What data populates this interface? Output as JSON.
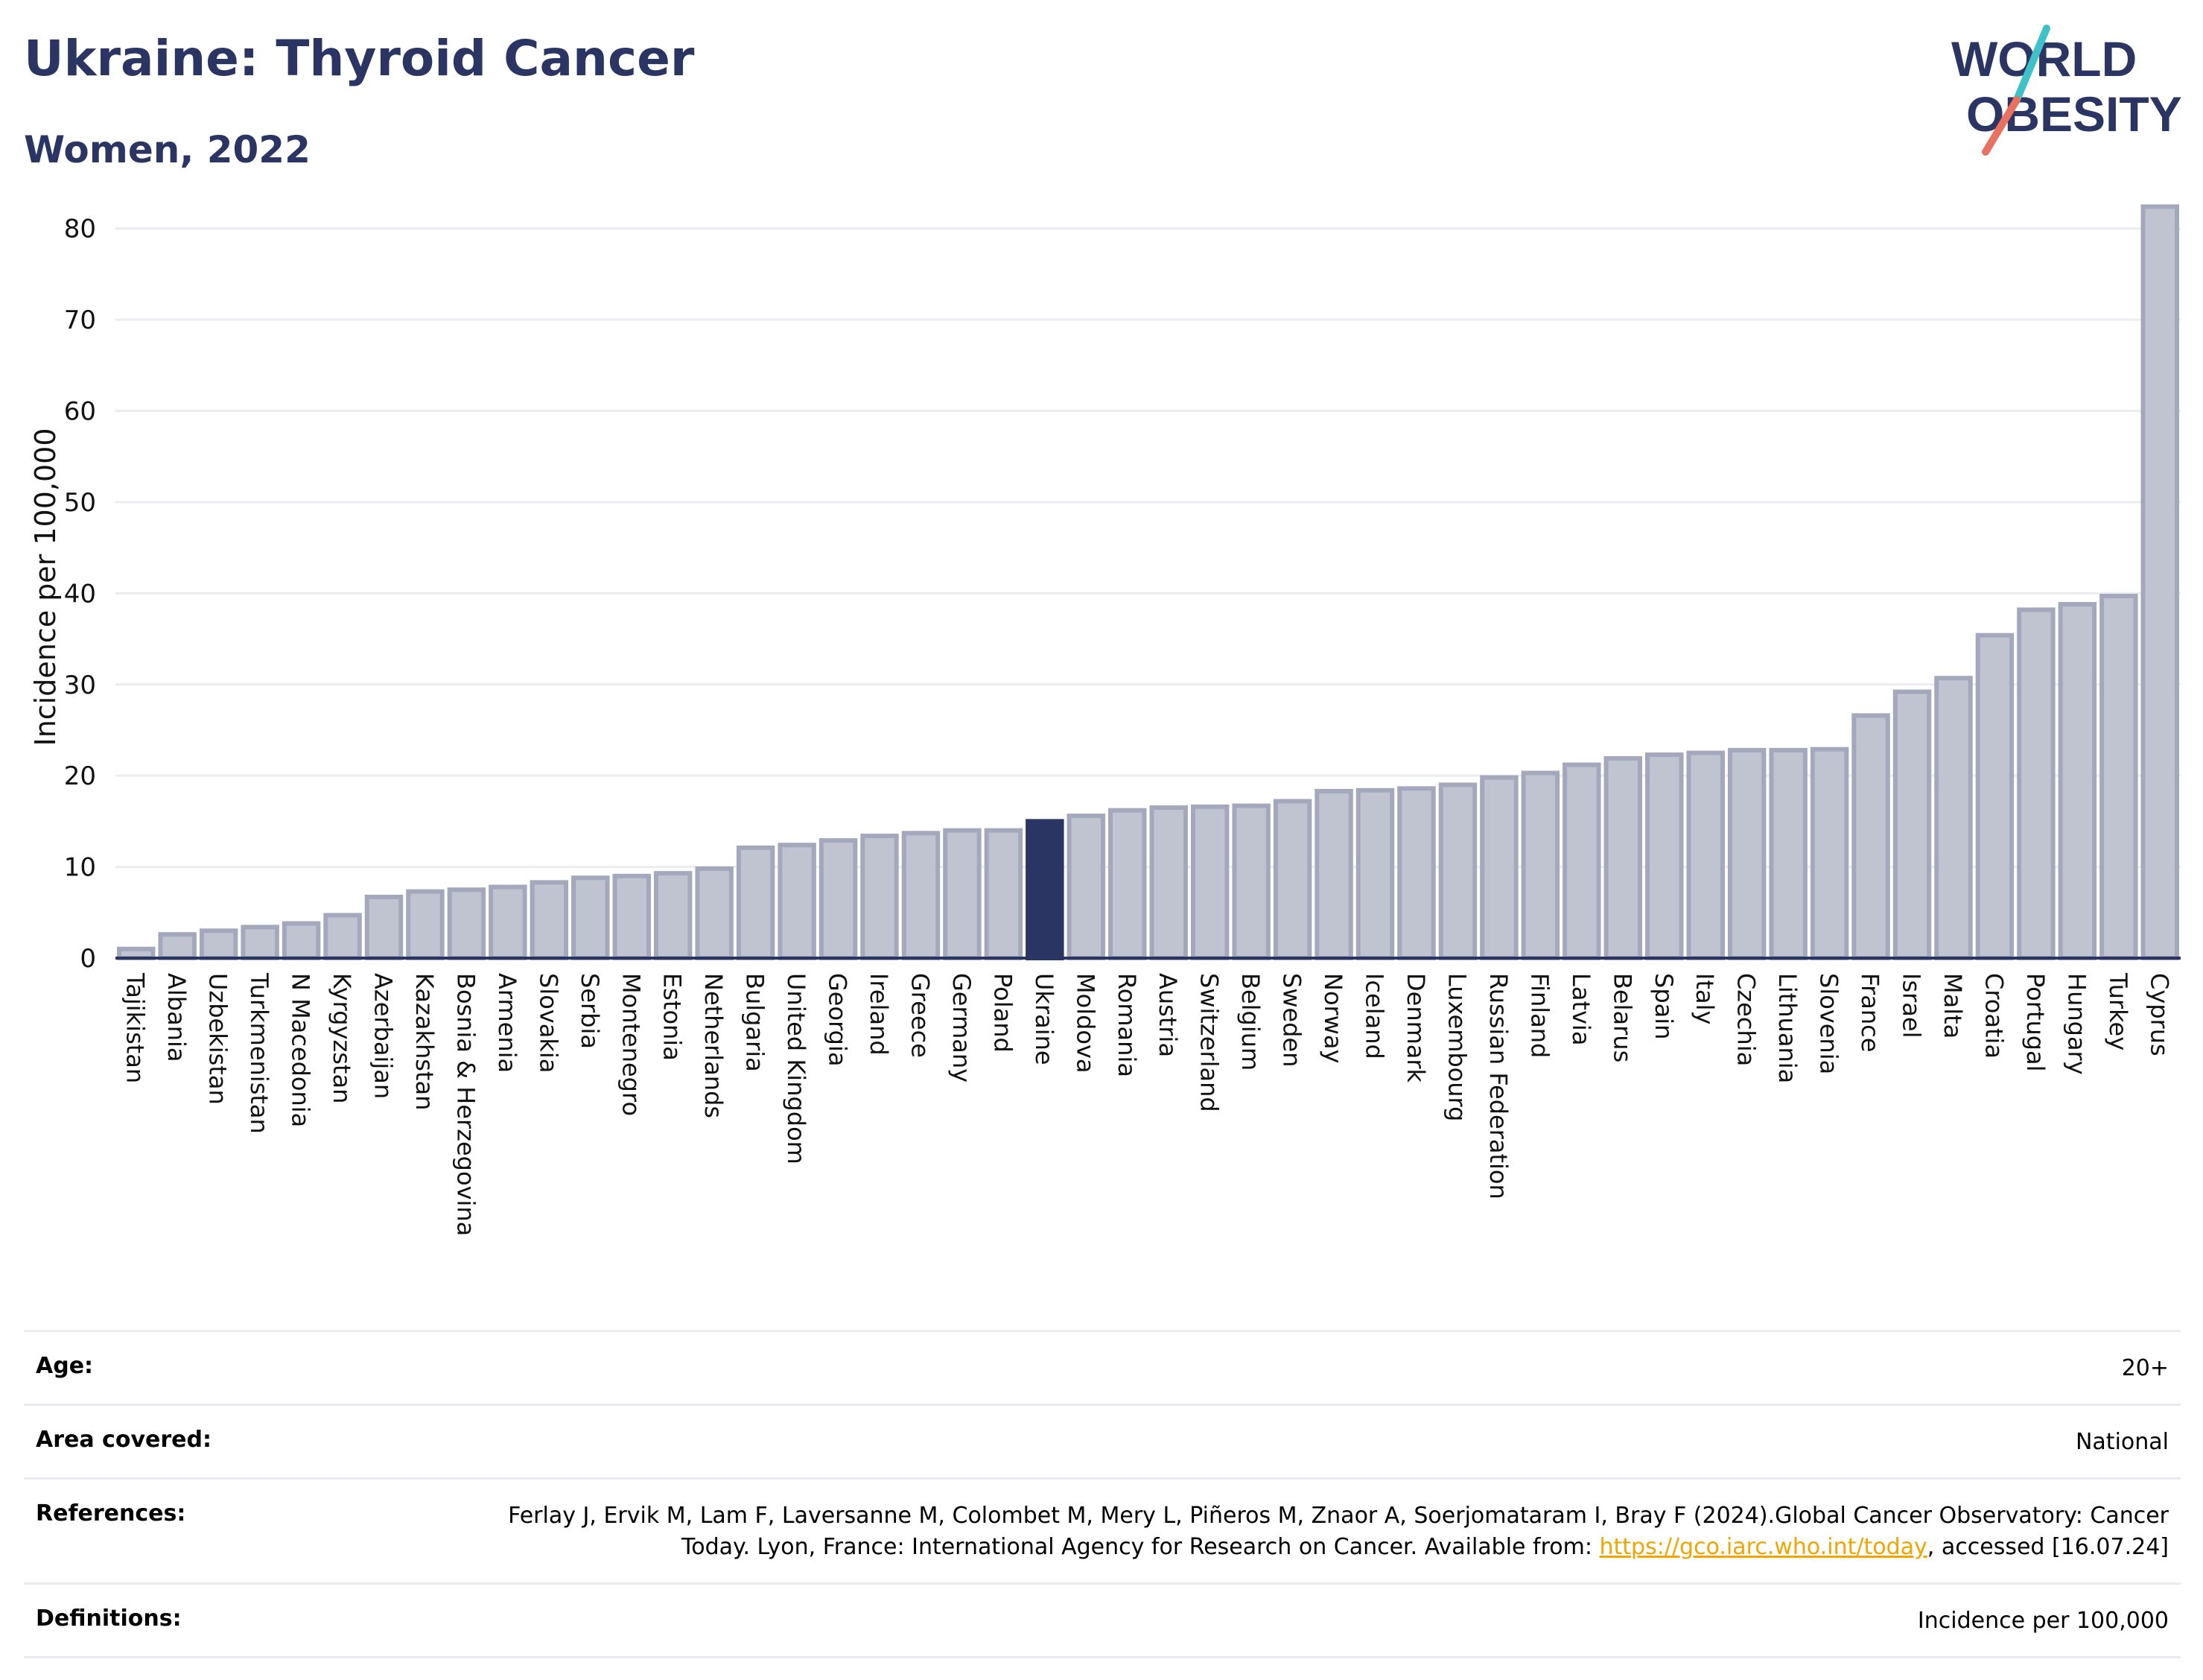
{
  "header": {
    "title": "Ukraine: Thyroid Cancer",
    "subtitle": "Women, 2022"
  },
  "logo": {
    "line1": "WORLD",
    "line2": "OBESITY",
    "text_color": "#2b3563",
    "slash_top_color": "#3fc1c9",
    "slash_bottom_color": "#e8715f"
  },
  "chart_data": {
    "type": "bar",
    "ylabel": "Incidence per 100,000",
    "xlabel": "",
    "ylim": [
      0,
      83
    ],
    "yticks": [
      0,
      10,
      20,
      30,
      40,
      50,
      60,
      70,
      80
    ],
    "grid": true,
    "highlight": "Ukraine",
    "colors": {
      "bar": "#c0c3d0",
      "bar_edge": "#a3a8bc",
      "highlight": "#2b3563",
      "grid": "#ebecf0",
      "baseline": "#2b3563"
    },
    "categories": [
      "Tajikistan",
      "Albania",
      "Uzbekistan",
      "Turkmenistan",
      "N Macedonia",
      "Kyrgyzstan",
      "Azerbaijan",
      "Kazakhstan",
      "Bosnia & Herzegovina",
      "Armenia",
      "Slovakia",
      "Serbia",
      "Montenegro",
      "Estonia",
      "Netherlands",
      "Bulgaria",
      "United Kingdom",
      "Georgia",
      "Ireland",
      "Greece",
      "Germany",
      "Poland",
      "Ukraine",
      "Moldova",
      "Romania",
      "Austria",
      "Switzerland",
      "Belgium",
      "Sweden",
      "Norway",
      "Iceland",
      "Denmark",
      "Luxembourg",
      "Russian Federation",
      "Finland",
      "Latvia",
      "Belarus",
      "Spain",
      "Italy",
      "Czechia",
      "Lithuania",
      "Slovenia",
      "France",
      "Israel",
      "Malta",
      "Croatia",
      "Portugal",
      "Hungary",
      "Turkey",
      "Cyprus"
    ],
    "values": [
      1.0,
      2.6,
      3.0,
      3.4,
      3.8,
      4.7,
      6.7,
      7.3,
      7.5,
      7.8,
      8.3,
      8.8,
      9.0,
      9.3,
      9.8,
      12.1,
      12.4,
      12.9,
      13.4,
      13.7,
      14.0,
      14.0,
      15.0,
      15.6,
      16.2,
      16.5,
      16.6,
      16.7,
      17.2,
      18.3,
      18.4,
      18.6,
      19.0,
      19.8,
      20.3,
      21.2,
      21.9,
      22.3,
      22.5,
      22.8,
      22.8,
      22.9,
      26.6,
      29.2,
      30.7,
      35.4,
      38.2,
      38.8,
      39.7,
      82.4
    ]
  },
  "info": {
    "age_label": "Age:",
    "age_value": "20+",
    "area_label": "Area covered:",
    "area_value": "National",
    "references_label": "References:",
    "references_text_1": "Ferlay J, Ervik M, Lam F, Laversanne M, Colombet M, Mery L, Piñeros M, Znaor A, Soerjomataram I, Bray F (2024).Global Cancer Observatory: Cancer Today. Lyon, France: International Agency for Research on Cancer. Available from: ",
    "references_link": "https://gco.iarc.who.int/today",
    "references_text_2": ", accessed [16.07.24]",
    "definitions_label": "Definitions:",
    "definitions_value": "Incidence per 100,000"
  }
}
